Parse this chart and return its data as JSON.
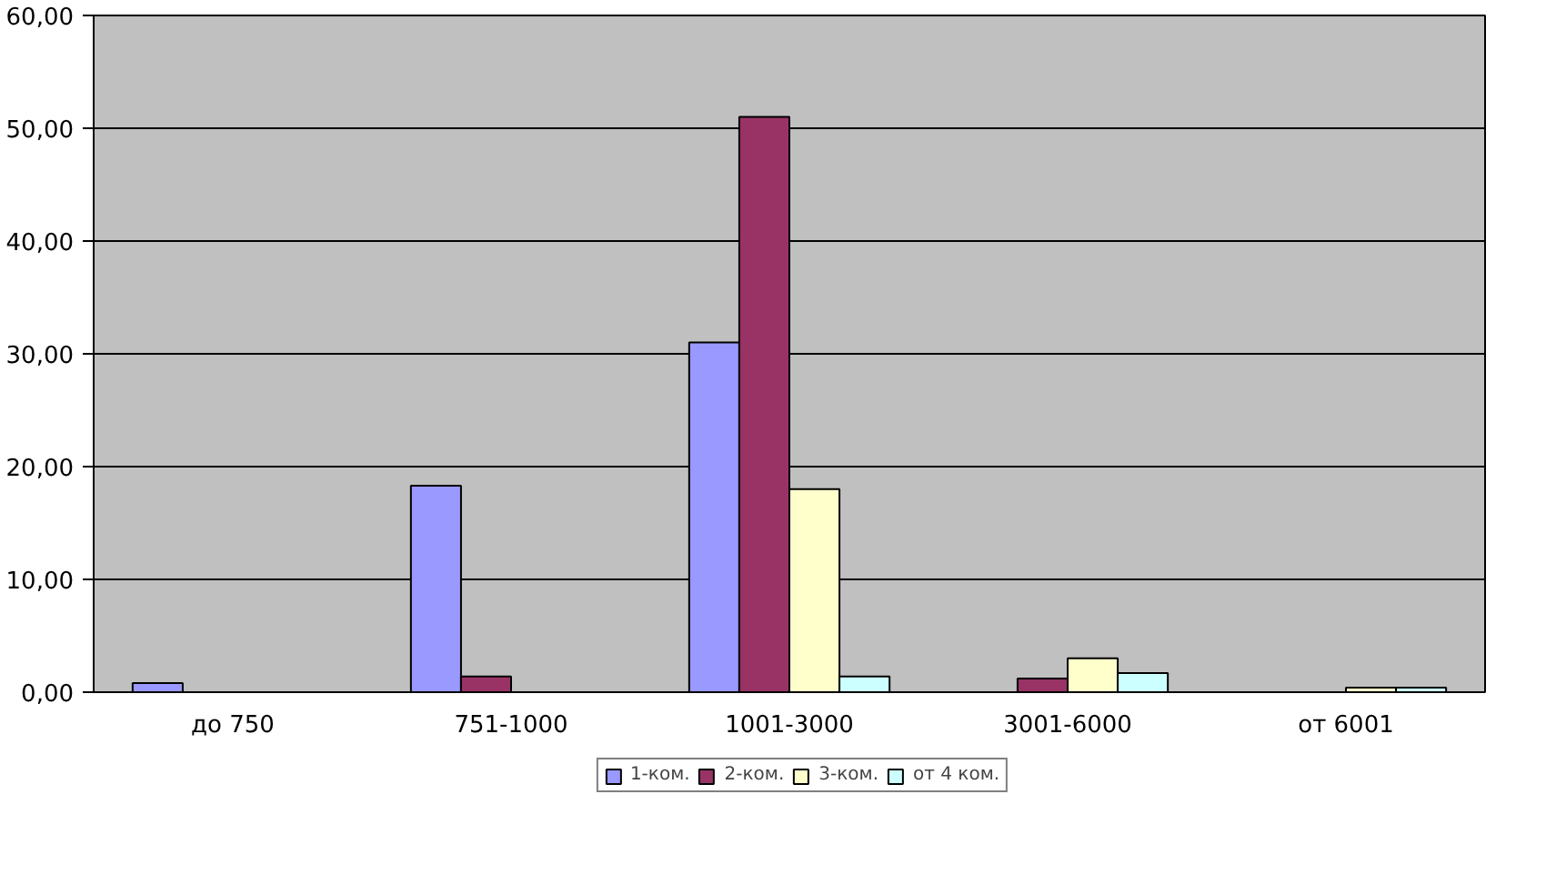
{
  "chart_data": {
    "type": "bar",
    "categories": [
      "до 750",
      "751-1000",
      "1001-3000",
      "3001-6000",
      "от 6001"
    ],
    "series": [
      {
        "name": "1-ком.",
        "color": "#9999ff",
        "values": [
          0.8,
          18.3,
          31.0,
          null,
          null
        ]
      },
      {
        "name": "2-ком.",
        "color": "#993366",
        "values": [
          null,
          1.4,
          51.0,
          1.2,
          null
        ]
      },
      {
        "name": "3-ком.",
        "color": "#ffffcc",
        "values": [
          null,
          null,
          18.0,
          3.0,
          0.4
        ]
      },
      {
        "name": "от 4 ком.",
        "color": "#ccffff",
        "values": [
          null,
          null,
          1.4,
          1.7,
          0.4
        ]
      }
    ],
    "ylim": [
      0,
      60
    ],
    "yticks": [
      {
        "value": 0,
        "label": "0,00"
      },
      {
        "value": 10,
        "label": "10,00"
      },
      {
        "value": 20,
        "label": "20,00"
      },
      {
        "value": 30,
        "label": "30,00"
      },
      {
        "value": 40,
        "label": "40,00"
      },
      {
        "value": 50,
        "label": "50,00"
      },
      {
        "value": 60,
        "label": "60,00"
      }
    ],
    "grid": "y",
    "legend": "bottom"
  }
}
